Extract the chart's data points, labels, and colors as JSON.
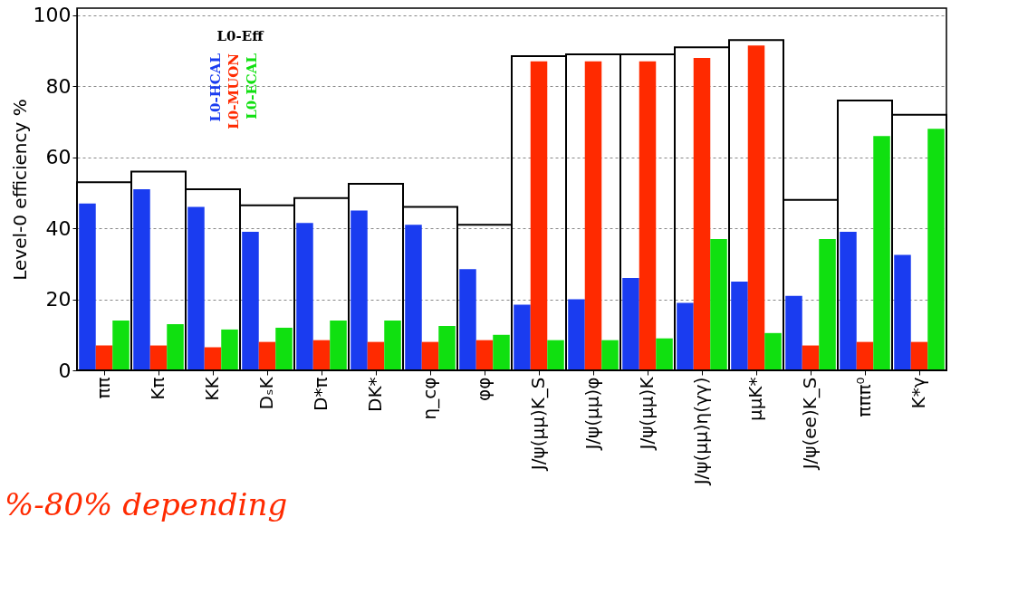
{
  "chart_data": {
    "type": "bar",
    "ylabel": "Level-0 efficiency %",
    "categories": [
      "ππ",
      "Kπ",
      "KK",
      "DₛK",
      "D*π",
      "DK*",
      "η_cφ",
      "φφ",
      "J/ψ(μμ)K_S",
      "J/ψ(μμ)φ",
      "J/ψ(μμ)K",
      "J/ψ(μμ)η(γγ)",
      "μμK*",
      "J/ψ(ee)K_S",
      "πππ⁰",
      "K*γ"
    ],
    "series": [
      {
        "name": "L0-Eff",
        "color": "#000000",
        "values": [
          53,
          56,
          51,
          46.5,
          48.5,
          52.5,
          46,
          41,
          88.5,
          89,
          89,
          91,
          93,
          48,
          76,
          72
        ]
      },
      {
        "name": "L0-HCAL",
        "color": "#1a3cf0",
        "values": [
          47,
          51,
          46,
          39,
          41.5,
          45,
          41,
          28.5,
          18.5,
          20,
          26,
          19,
          25,
          21,
          39,
          32.5
        ]
      },
      {
        "name": "L0-MUON",
        "color": "#ff2a00",
        "values": [
          7,
          7,
          6.5,
          8,
          8.5,
          8,
          8,
          8.5,
          87,
          87,
          87,
          88,
          91.5,
          7,
          8,
          8
        ]
      },
      {
        "name": "L0-ECAL",
        "color": "#10e010",
        "values": [
          14,
          13,
          11.5,
          12,
          14,
          14,
          12.5,
          10,
          8.5,
          8.5,
          9,
          37,
          10.5,
          37,
          66,
          68
        ]
      }
    ],
    "ylim": [
      0,
      102
    ],
    "yticks": [
      0,
      20,
      40,
      60,
      80,
      100
    ],
    "grid": "y",
    "legend": "top left",
    "annotations": [
      "%-80% depending"
    ]
  }
}
